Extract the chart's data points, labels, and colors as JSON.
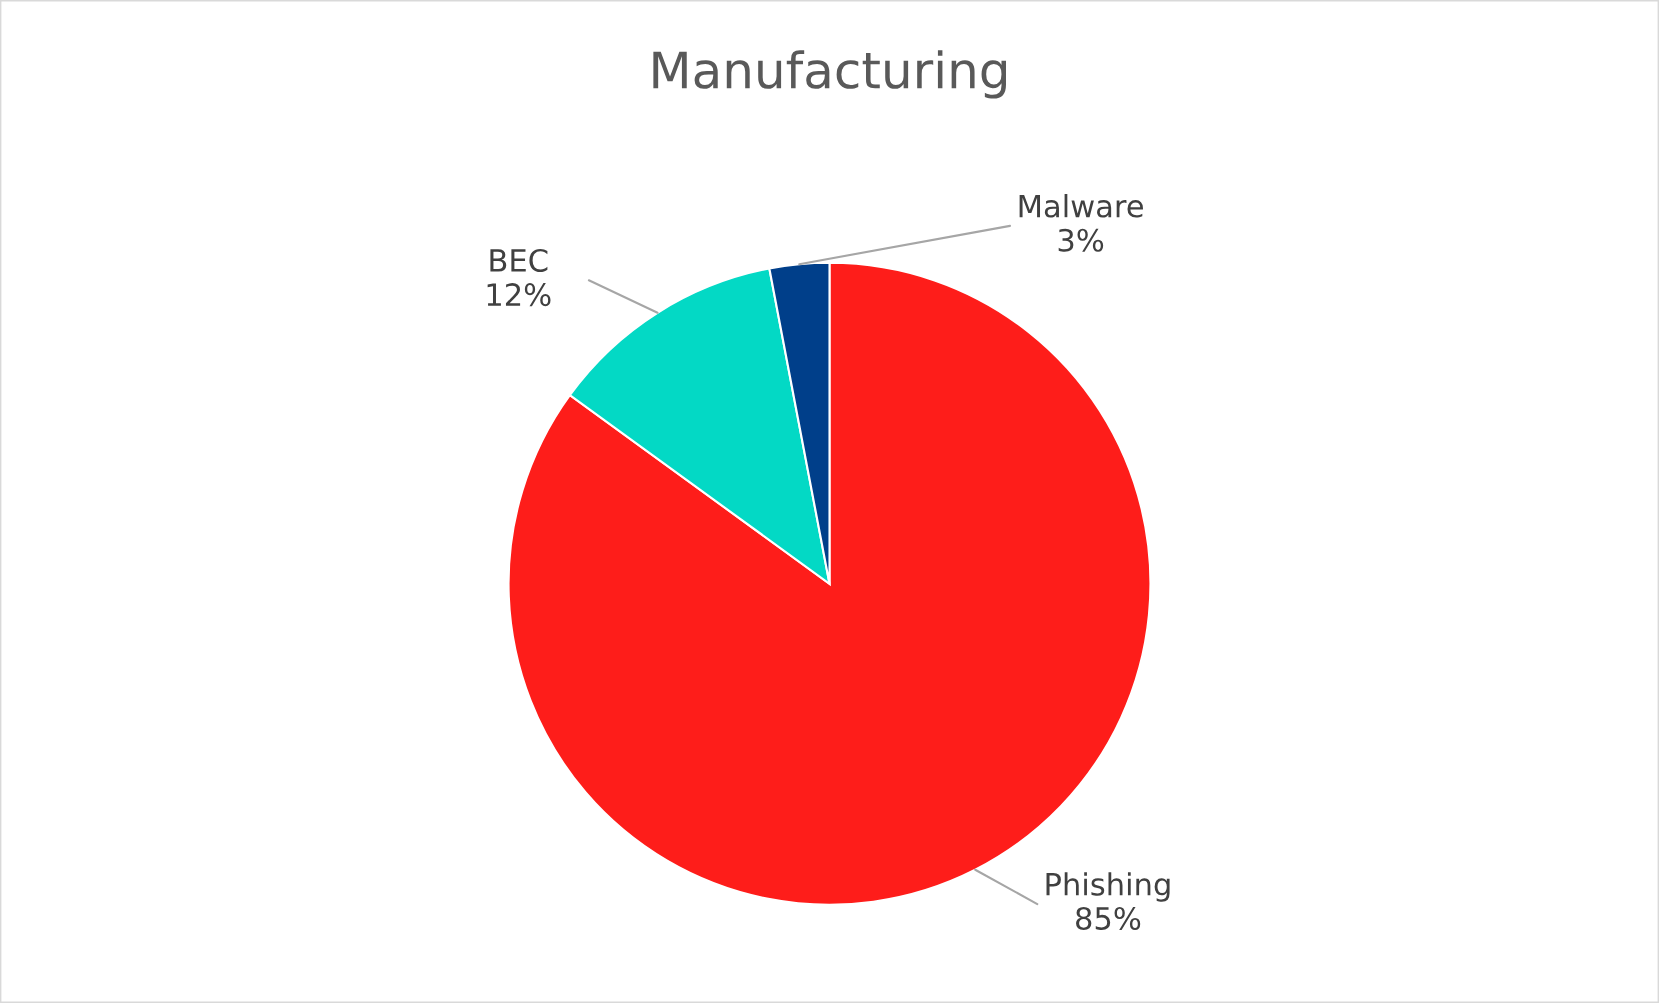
{
  "chart_data": {
    "type": "pie",
    "title": "Manufacturing",
    "categories": [
      "Phishing",
      "BEC",
      "Malware"
    ],
    "values": [
      85,
      12,
      3
    ],
    "colors": [
      "#fe1d1a",
      "#03d9c5",
      "#003f8a"
    ],
    "value_labels": [
      "85%",
      "12%",
      "3%"
    ]
  }
}
